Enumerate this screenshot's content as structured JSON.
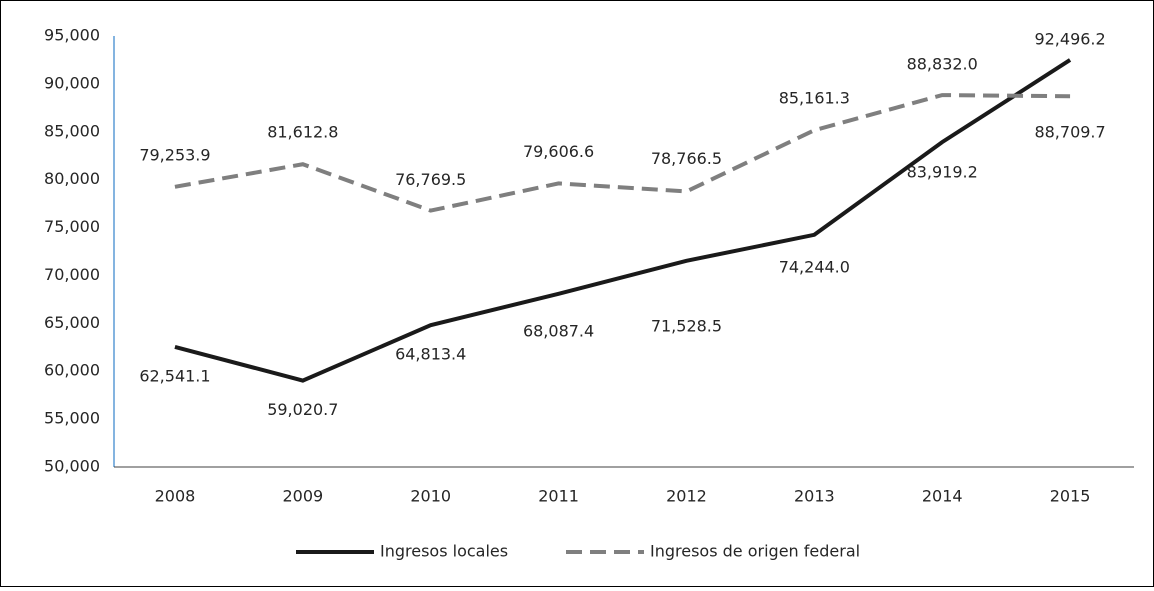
{
  "chart_data": {
    "type": "line",
    "categories": [
      "2008",
      "2009",
      "2010",
      "2011",
      "2012",
      "2013",
      "2014",
      "2015"
    ],
    "series": [
      {
        "name": "Ingresos locales",
        "color": "#1a1a1a",
        "dash": false,
        "values": [
          62541.1,
          59020.7,
          64813.4,
          68087.4,
          71528.5,
          74244.0,
          83919.2,
          92496.2
        ],
        "value_labels": [
          "62,541.1",
          "59,020.7",
          "64,813.4",
          "68,087.4",
          "71,528.5",
          "74,244.0",
          "83,919.2",
          "92,496.2"
        ]
      },
      {
        "name": "Ingresos de origen federal",
        "color": "#7f7f7f",
        "dash": true,
        "values": [
          79253.9,
          81612.8,
          76769.5,
          79606.6,
          78766.5,
          85161.3,
          88832.0,
          88709.7
        ],
        "value_labels": [
          "79,253.9",
          "81,612.8",
          "76,769.5",
          "79,606.6",
          "78,766.5",
          "85,161.3",
          "88,832.0",
          "88,709.7"
        ]
      }
    ],
    "ylim": [
      50000,
      95000
    ],
    "yticks": [
      {
        "value": 50000,
        "label": "50,000"
      },
      {
        "value": 55000,
        "label": "55,000"
      },
      {
        "value": 60000,
        "label": "60,000"
      },
      {
        "value": 65000,
        "label": "65,000"
      },
      {
        "value": 70000,
        "label": "70,000"
      },
      {
        "value": 75000,
        "label": "75,000"
      },
      {
        "value": 80000,
        "label": "80,000"
      },
      {
        "value": 85000,
        "label": "85,000"
      },
      {
        "value": 90000,
        "label": "90,000"
      },
      {
        "value": 95000,
        "label": "95,000"
      }
    ],
    "grid": false,
    "legend": "bottom"
  }
}
